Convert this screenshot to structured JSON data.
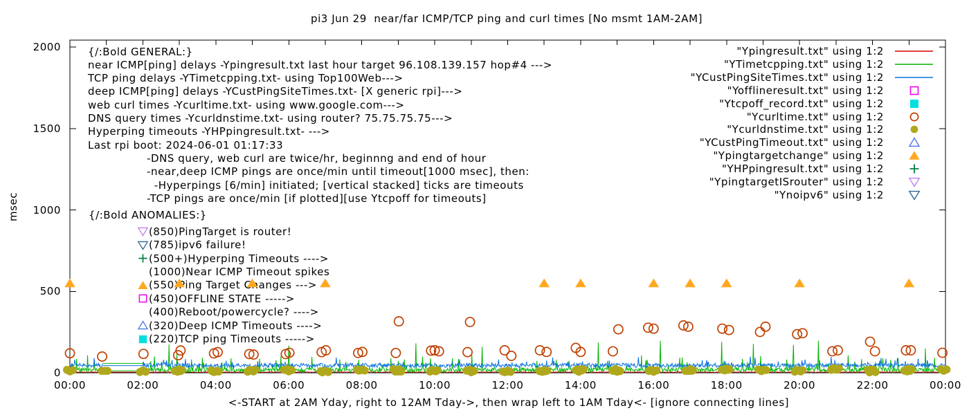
{
  "title": "pi3 Jun 29  near/far ICMP/TCP ping and curl times [No msmt 1AM-2AM]",
  "axes": {
    "ylabel": "msec",
    "xlabel": "<-START at 2AM Yday, right to 12AM Tday->, then wrap left to 1AM Tday<- [ignore connecting lines]",
    "y_ticks": [
      "0",
      "500",
      "1000",
      "1500",
      "2000"
    ],
    "x_ticks": [
      "00:00",
      "02:00",
      "04:00",
      "06:00",
      "08:00",
      "10:00",
      "12:00",
      "14:00",
      "16:00",
      "18:00",
      "20:00",
      "22:00",
      "00:00"
    ]
  },
  "colors": {
    "near_ping_line": "#dc0000",
    "tcp_ping_line": "#00b400",
    "deep_ping_line": "#0a70e0",
    "offline_square": "#ee00ee",
    "tcpoff_square": "#00e0e0",
    "curl_circle": "#c04000",
    "dns_dot": "#b0a81c",
    "deep_timeout_triangle": "#4d79e6",
    "target_change_triangle": "#ffa81f",
    "hyperping_plus": "#008040",
    "isrouter_triangle": "#c080f0",
    "noipv6_triangle": "#2f6a93",
    "axis": "#000000",
    "text": "#000000"
  },
  "legend": [
    {
      "label": "\"Ypingresult.txt\" using 1:2",
      "sample": "line",
      "color": "#dc0000"
    },
    {
      "label": "\"YTimetcpping.txt\" using 1:2",
      "sample": "line",
      "color": "#00b400"
    },
    {
      "label": "\"YCustPingSiteTimes.txt\" using 1:2",
      "sample": "line",
      "color": "#0a70e0"
    },
    {
      "label": "\"Yofflineresult.txt\" using 1:2",
      "sample": "square-open",
      "color": "#ee00ee"
    },
    {
      "label": "\"Ytcpoff_record.txt\" using 1:2",
      "sample": "square-filled",
      "color": "#00e0e0"
    },
    {
      "label": "\"Ycurltime.txt\" using 1:2",
      "sample": "circle-open",
      "color": "#c04000"
    },
    {
      "label": "\"Ycurldnstime.txt\" using 1:2",
      "sample": "circle-filled",
      "color": "#b0a81c"
    },
    {
      "label": "\"YCustPingTimeout.txt\" using 1:2",
      "sample": "triangle-open",
      "color": "#4d79e6"
    },
    {
      "label": "\"Ypingtargetchange\" using 1:2",
      "sample": "triangle-filled",
      "color": "#ffa81f"
    },
    {
      "label": "\"YHPpingresult.txt\" using 1:2",
      "sample": "plus",
      "color": "#008040"
    },
    {
      "label": "\"YpingtargetISrouter\" using 1:2",
      "sample": "tridown-open",
      "color": "#c080f0"
    },
    {
      "label": "\"Ynoipv6\" using 1:2",
      "sample": "tridown-open",
      "color": "#2f6a93"
    }
  ],
  "annotations": {
    "general": [
      "{/:Bold GENERAL:}",
      "near ICMP[ping] delays -Ypingresult.txt last hour target 96.108.139.157 hop#4 --->",
      "TCP ping delays -YTimetcpping.txt- using Top100Web--->",
      "deep ICMP[ping] delays -YCustPingSiteTimes.txt- [X generic rpi]--->",
      "web curl times -Ycurltime.txt- using www.google.com--->",
      "DNS query times -Ycurldnstime.txt- using router? 75.75.75.75--->",
      "Hyperping timeouts -YHPpingresult.txt- --->",
      "Last rpi boot: 2024-06-01 01:17:33",
      "                -DNS query, web curl are twice/hr, beginnng and end of hour",
      "                -near,deep ICMP pings are once/min until timeout[1000 msec], then:",
      "                  -Hyperpings [6/min] initiated; [vertical stacked] ticks are timeouts",
      "                -TCP pings are once/min [if plotted][use Ytcpoff for timeouts]"
    ],
    "anomalies_header": "{/:Bold ANOMALIES:}",
    "anomalies": [
      {
        "marker": "tridown-open",
        "color": "#c080f0",
        "text": "(850)PingTarget is router!"
      },
      {
        "marker": "tridown-open",
        "color": "#2f6a93",
        "text": "(785)ipv6 failure!"
      },
      {
        "marker": "plus",
        "color": "#008040",
        "text": "(500+)Hyperping Timeouts ---->"
      },
      {
        "marker": "none",
        "color": "",
        "text": "(1000)Near ICMP Timeout spikes"
      },
      {
        "marker": "triangle-filled",
        "color": "#ffa81f",
        "text": "(550)Ping Target Changes --->"
      },
      {
        "marker": "square-open",
        "color": "#ee00ee",
        "text": "(450)OFFLINE STATE ----->"
      },
      {
        "marker": "none",
        "color": "",
        "text": "(400)Reboot/powercycle? ---->"
      },
      {
        "marker": "triangle-open",
        "color": "#4d79e6",
        "text": "(320)Deep ICMP Timeouts ---->"
      },
      {
        "marker": "square-filled",
        "color": "#00e0e0",
        "text": "(220)TCP ping Timeouts ----->"
      }
    ]
  },
  "chart_data": {
    "type": "line",
    "x_unit": "minute-of-day",
    "x_range_minutes": [
      0,
      1440
    ],
    "ylim": [
      0,
      2000
    ],
    "xlabel_ticks_every_hours": 2,
    "grid": false,
    "no_measurement_gap_minutes": [
      54,
      120
    ],
    "series": [
      {
        "name": "Ypingresult.txt (near ICMP ping)",
        "type": "noise-line",
        "color": "#dc0000",
        "base": 2.2,
        "amp": 4,
        "spike_chance": 0.0,
        "spike_amp": 0
      },
      {
        "name": "YTimetcpping.txt (TCP ping)",
        "type": "noise-line",
        "color": "#00b400",
        "base": 4,
        "amp": 27,
        "spike_chance": 0.1,
        "spike_amp": 85
      },
      {
        "name": "YCustPingSiteTimes.txt (deep ICMP ping)",
        "type": "noise-line",
        "color": "#0a70e0",
        "base": 33,
        "amp": 26,
        "spike_chance": 0.06,
        "spike_amp": 42
      }
    ],
    "gap_connector_lines": [
      {
        "value": 58,
        "color": "#00b400"
      },
      {
        "value": 44,
        "color": "#0a70e0"
      },
      {
        "value": 12,
        "color": "#00b400"
      },
      {
        "value": 4,
        "color": "#dc0000"
      }
    ],
    "tcp_ping_spikes": [
      [
        163,
        175
      ],
      [
        176,
        117
      ],
      [
        218,
        93
      ],
      [
        360,
        168
      ],
      [
        569,
        181
      ],
      [
        678,
        160
      ],
      [
        869,
        187
      ],
      [
        971,
        197
      ],
      [
        1072,
        190
      ],
      [
        1124,
        178
      ],
      [
        1190,
        172
      ],
      [
        1231,
        197
      ],
      [
        1407,
        150
      ]
    ],
    "web_curl_times": [
      [
        0,
        120
      ],
      [
        53,
        100
      ],
      [
        121,
        116
      ],
      [
        178,
        108
      ],
      [
        182,
        137
      ],
      [
        237,
        119
      ],
      [
        243,
        127
      ],
      [
        295,
        115
      ],
      [
        302,
        112
      ],
      [
        355,
        115
      ],
      [
        361,
        123
      ],
      [
        414,
        127
      ],
      [
        421,
        138
      ],
      [
        474,
        122
      ],
      [
        481,
        128
      ],
      [
        536,
        122
      ],
      [
        541,
        316
      ],
      [
        594,
        136
      ],
      [
        600,
        138
      ],
      [
        607,
        132
      ],
      [
        654,
        127
      ],
      [
        658,
        312
      ],
      [
        715,
        138
      ],
      [
        726,
        104
      ],
      [
        773,
        138
      ],
      [
        784,
        128
      ],
      [
        832,
        153
      ],
      [
        840,
        128
      ],
      [
        893,
        132
      ],
      [
        902,
        267
      ],
      [
        951,
        277
      ],
      [
        960,
        271
      ],
      [
        1009,
        291
      ],
      [
        1017,
        283
      ],
      [
        1073,
        271
      ],
      [
        1084,
        263
      ],
      [
        1135,
        251
      ],
      [
        1144,
        283
      ],
      [
        1196,
        237
      ],
      [
        1205,
        243
      ],
      [
        1254,
        132
      ],
      [
        1263,
        138
      ],
      [
        1316,
        191
      ],
      [
        1324,
        132
      ],
      [
        1375,
        138
      ],
      [
        1383,
        138
      ],
      [
        1435,
        123
      ]
    ],
    "dns_query_times": [
      [
        0,
        13
      ],
      [
        57,
        12
      ],
      [
        120,
        10
      ],
      [
        177,
        9
      ],
      [
        180,
        18
      ],
      [
        237,
        9
      ],
      [
        240,
        8
      ],
      [
        297,
        12
      ],
      [
        300,
        16
      ],
      [
        357,
        21
      ],
      [
        360,
        13
      ],
      [
        417,
        10
      ],
      [
        420,
        8
      ],
      [
        477,
        17
      ],
      [
        480,
        16
      ],
      [
        537,
        18
      ],
      [
        540,
        8
      ],
      [
        597,
        13
      ],
      [
        600,
        14
      ],
      [
        657,
        16
      ],
      [
        660,
        8
      ],
      [
        717,
        8
      ],
      [
        720,
        9
      ],
      [
        777,
        8
      ],
      [
        780,
        14
      ],
      [
        837,
        11
      ],
      [
        840,
        21
      ],
      [
        897,
        19
      ],
      [
        900,
        9
      ],
      [
        957,
        14
      ],
      [
        960,
        11
      ],
      [
        1017,
        12
      ],
      [
        1020,
        18
      ],
      [
        1077,
        17
      ],
      [
        1080,
        23
      ],
      [
        1137,
        15
      ],
      [
        1140,
        17
      ],
      [
        1197,
        12
      ],
      [
        1200,
        14
      ],
      [
        1257,
        21
      ],
      [
        1260,
        24
      ],
      [
        1317,
        19
      ],
      [
        1320,
        8
      ],
      [
        1377,
        11
      ],
      [
        1380,
        22
      ],
      [
        1437,
        17
      ]
    ],
    "ping_target_changes": {
      "value": 550,
      "hours": [
        0,
        3,
        5,
        7,
        13,
        14,
        16,
        17,
        18,
        20,
        23
      ]
    },
    "noise_seed": 1234567
  }
}
